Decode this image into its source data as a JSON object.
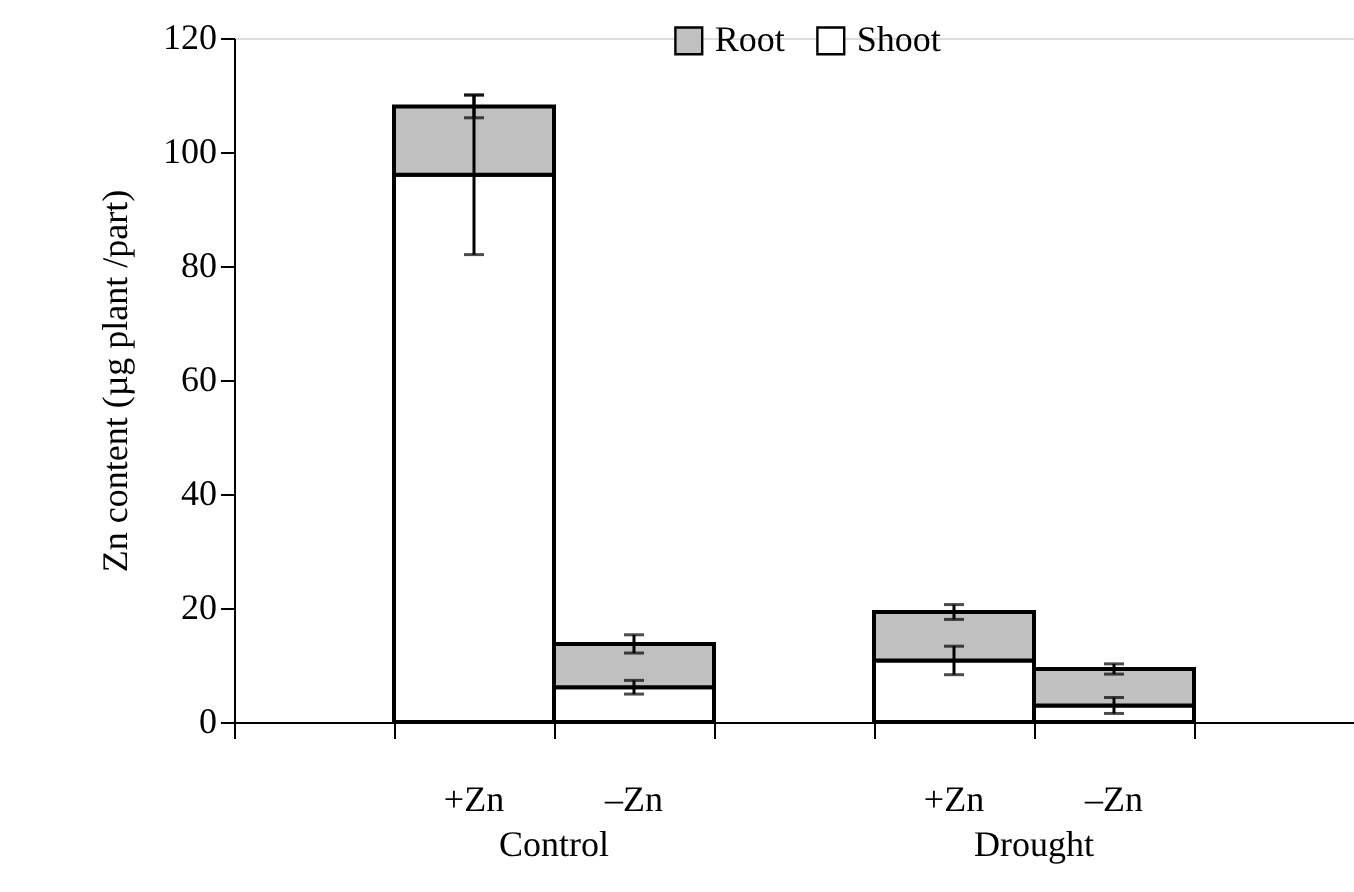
{
  "chart_data": {
    "type": "bar",
    "stacked": true,
    "ylabel": "Zn content (µg plant /part)",
    "categories": [
      null,
      "+Zn",
      "–Zn",
      null,
      "+Zn",
      "–Zn",
      null
    ],
    "series": [
      {
        "name": "Shoot",
        "color": "#ffffff",
        "values": [
          null,
          96,
          6.1,
          null,
          10.8,
          2.9,
          null
        ],
        "errors": [
          null,
          14,
          1.2,
          null,
          2.5,
          1.4,
          null
        ]
      },
      {
        "name": "Root",
        "color": "#c0c0c0",
        "values": [
          null,
          12,
          7.6,
          null,
          8.5,
          6.4,
          null
        ],
        "errors": [
          null,
          2,
          1.6,
          null,
          1.3,
          0.9,
          null
        ]
      }
    ],
    "ylim": [
      0,
      120
    ],
    "yticks": [
      0,
      20,
      40,
      60,
      80,
      100,
      120
    ],
    "annotations": [
      "Control",
      "Drought"
    ],
    "legend": "top",
    "grid": false
  }
}
